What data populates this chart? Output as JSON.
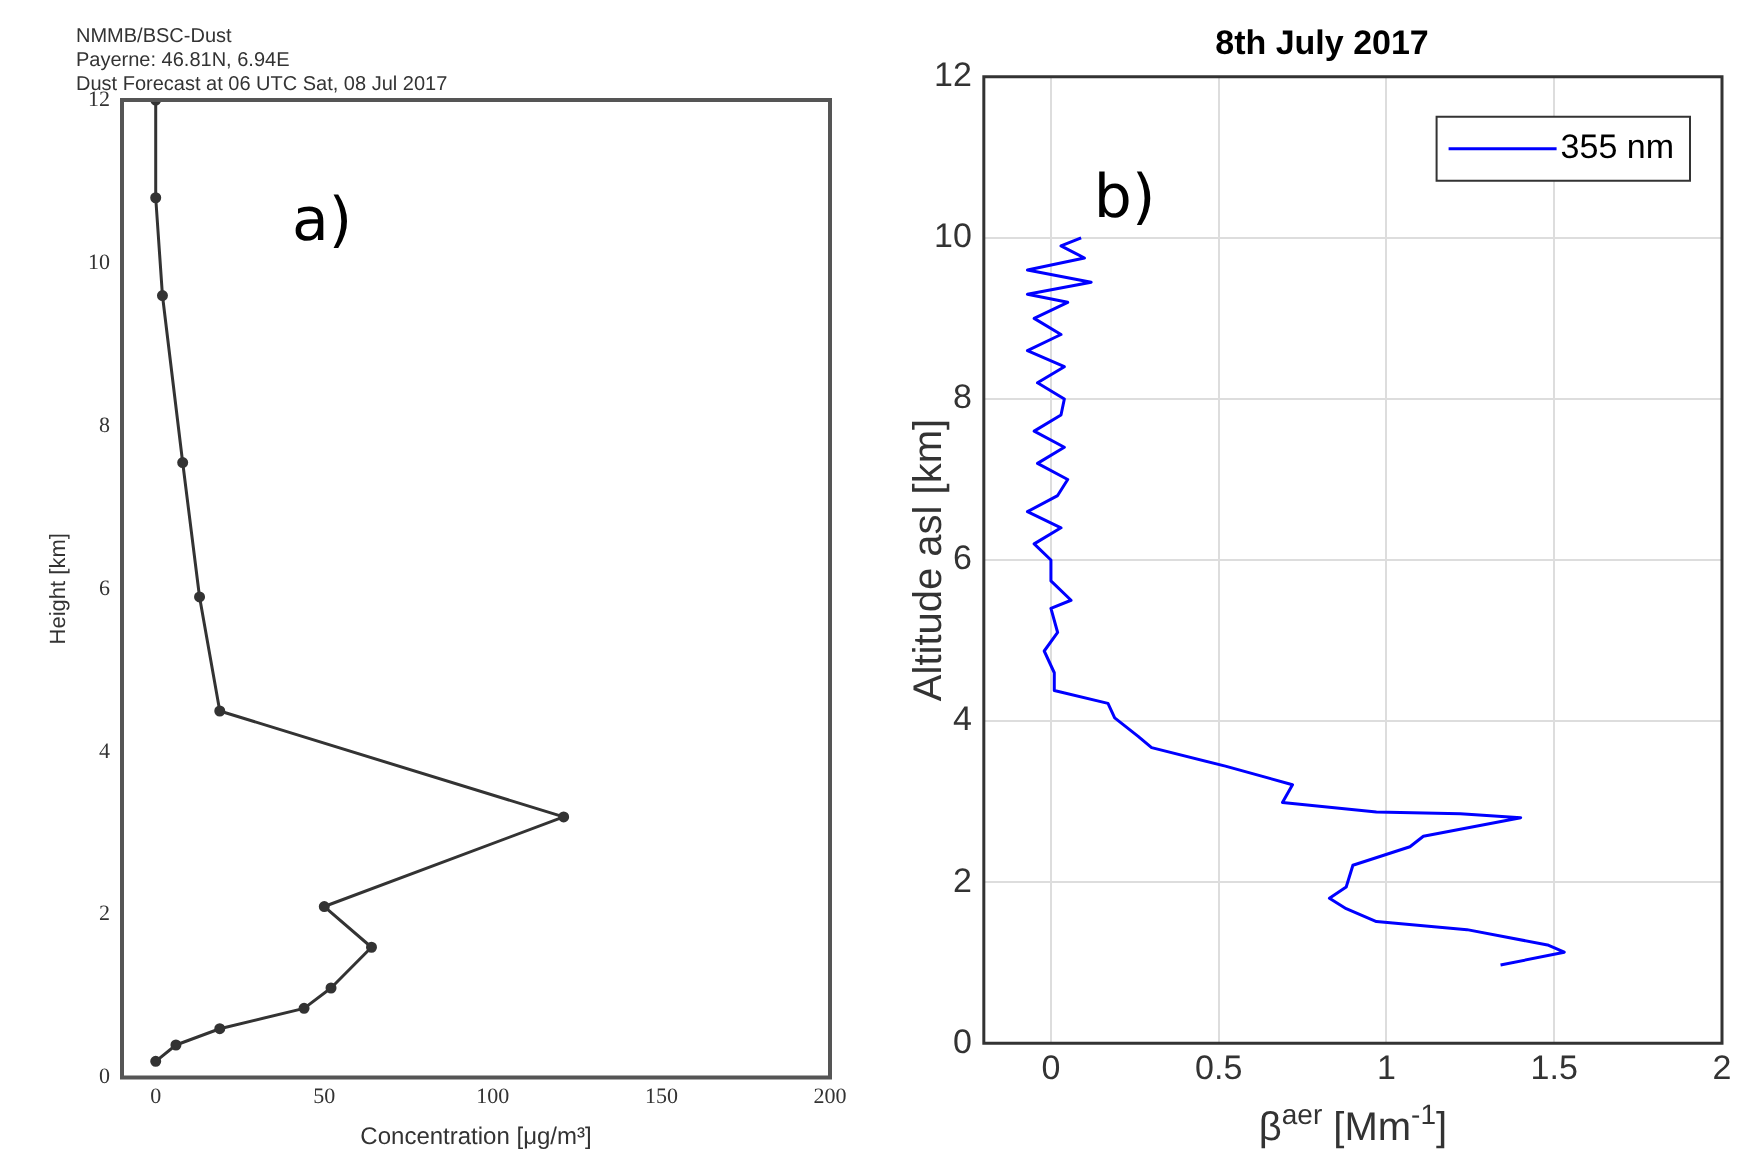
{
  "chart_data": [
    {
      "type": "line",
      "title": "NMMB/BSC-Dust",
      "subtitle": "Payerne: 46.81N, 6.94E\nDust Forecast at 06 UTC Sat, 08 Jul 2017",
      "xlabel": "Concentration [μg/m³]",
      "ylabel": "Height [km]",
      "annotations": [
        "a)"
      ],
      "x": [
        0,
        6,
        19,
        44,
        52,
        64,
        50,
        121,
        19,
        13,
        8,
        2,
        0,
        0
      ],
      "series": [
        {
          "color": "#333333",
          "values": [
            0.2,
            0.4,
            0.6,
            0.85,
            1.1,
            1.6,
            2.1,
            3.2,
            4.5,
            5.9,
            7.55,
            9.6,
            10.8,
            12
          ]
        }
      ],
      "xlim": [
        -10,
        200
      ],
      "xticks": [
        0,
        50,
        100,
        150,
        200
      ],
      "ylim": [
        0,
        12
      ],
      "yticks": [
        0,
        2,
        4,
        6,
        8,
        10,
        12
      ],
      "grid": false,
      "marker": "circle",
      "line_style": "solid"
    },
    {
      "type": "line",
      "title": "8th July 2017",
      "xlabel": "β$^{aer}$ [Mm$^{-1}$]",
      "ylabel": "Altitude asl [km]",
      "annotations": [
        "b)"
      ],
      "x": [
        1.34,
        1.53,
        1.48,
        1.24,
        0.97,
        0.88,
        0.83,
        0.88,
        0.9,
        1.07,
        1.11,
        1.4,
        1.22,
        0.97,
        0.69,
        0.72,
        0.52,
        0.3,
        0.26,
        0.19,
        0.17,
        0.01,
        0.01,
        -0.02,
        0.02,
        0.0,
        0.06,
        0.0,
        0.0,
        -0.05,
        0.03,
        -0.07,
        0.02,
        0.05,
        -0.04,
        0.04,
        -0.05,
        0.03,
        0.04,
        -0.04,
        0.04,
        -0.07,
        0.03,
        -0.05,
        0.05,
        -0.07,
        0.12,
        -0.07,
        0.1,
        0.03,
        0.09
      ],
      "series": [
        {
          "name": "355 nm",
          "color": "#0000ff",
          "values": [
            0.97,
            1.13,
            1.22,
            1.41,
            1.51,
            1.67,
            1.8,
            1.94,
            2.21,
            2.44,
            2.57,
            2.8,
            2.85,
            2.87,
            2.99,
            3.21,
            3.44,
            3.67,
            3.81,
            4.04,
            4.22,
            4.38,
            4.6,
            4.87,
            5.1,
            5.4,
            5.5,
            5.74,
            6.0,
            6.2,
            6.4,
            6.6,
            6.8,
            7.0,
            7.2,
            7.4,
            7.6,
            7.8,
            8.0,
            8.2,
            8.4,
            8.6,
            8.8,
            9.0,
            9.2,
            9.3,
            9.45,
            9.6,
            9.75,
            9.9,
            10.0
          ]
        }
      ],
      "xlim": [
        -0.2,
        2
      ],
      "xticks": [
        0,
        0.5,
        1,
        1.5,
        2
      ],
      "ylim": [
        0,
        12
      ],
      "yticks": [
        0,
        2,
        4,
        6,
        8,
        10,
        12
      ],
      "grid": true,
      "legend": "top right",
      "marker": "none",
      "line_style": "solid"
    }
  ]
}
